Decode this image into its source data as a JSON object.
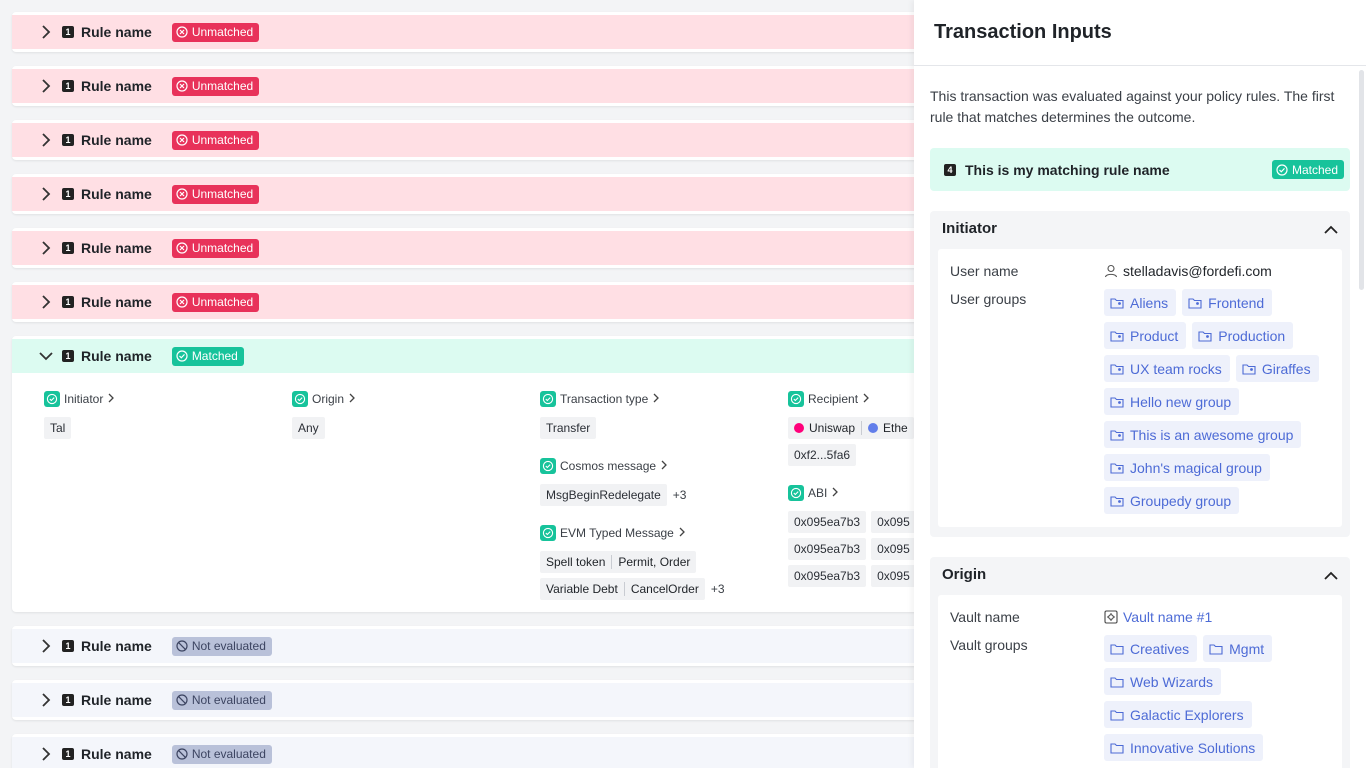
{
  "rules": {
    "unmatched": [
      {
        "num": "1",
        "name": "Rule name",
        "status": "Unmatched"
      },
      {
        "num": "1",
        "name": "Rule name",
        "status": "Unmatched"
      },
      {
        "num": "1",
        "name": "Rule name",
        "status": "Unmatched"
      },
      {
        "num": "1",
        "name": "Rule name",
        "status": "Unmatched"
      },
      {
        "num": "1",
        "name": "Rule name",
        "status": "Unmatched"
      },
      {
        "num": "1",
        "name": "Rule name",
        "status": "Unmatched"
      }
    ],
    "expanded": {
      "num": "1",
      "name": "Rule name",
      "status": "Matched",
      "initiator": {
        "label": "Initiator",
        "value": "Tal"
      },
      "origin": {
        "label": "Origin",
        "value": "Any"
      },
      "transaction_type": {
        "label": "Transaction type",
        "value": "Transfer"
      },
      "cosmos_message": {
        "label": "Cosmos message",
        "value": "MsgBeginRedelegate",
        "more": "+3"
      },
      "evm_typed_message": {
        "label": "EVM Typed Message",
        "row1": [
          "Spell token",
          "Permit, Order"
        ],
        "row2": [
          "Variable Debt",
          "CancelOrder"
        ],
        "more": "+3"
      },
      "recipient": {
        "label": "Recipient",
        "chip1": "Uniswap",
        "chip2": "Ethe",
        "address": "0xf2...5fa6"
      },
      "abi": {
        "label": "ABI",
        "values": [
          "0x095ea7b3",
          "0x095",
          "0x095ea7b3",
          "0x095",
          "0x095ea7b3",
          "0x095"
        ]
      }
    },
    "not_evaluated": [
      {
        "num": "1",
        "name": "Rule name",
        "status": "Not evaluated"
      },
      {
        "num": "1",
        "name": "Rule name",
        "status": "Not evaluated"
      },
      {
        "num": "1",
        "name": "Rule name",
        "status": "Not evaluated"
      }
    ]
  },
  "panel": {
    "title": "Transaction Inputs",
    "description": "This transaction was evaluated against your policy rules. The first rule that matches determines the outcome.",
    "matching_rule": {
      "num": "4",
      "name": "This is my matching rule name",
      "status": "Matched"
    },
    "initiator": {
      "title": "Initiator",
      "user_name_label": "User name",
      "user_name": "stelladavis@fordefi.com",
      "user_groups_label": "User groups",
      "user_groups": [
        "Aliens",
        "Frontend",
        "Product",
        "Production",
        "UX team rocks",
        "Giraffes",
        "Hello new group",
        "This is an awesome group",
        "John's magical group",
        "Groupedy group"
      ]
    },
    "origin": {
      "title": "Origin",
      "vault_name_label": "Vault name",
      "vault_name": "Vault name #1",
      "vault_groups_label": "Vault groups",
      "vault_groups": [
        "Creatives",
        "Mgmt",
        "Web Wizards",
        "Galactic Explorers",
        "Innovative Solutions"
      ]
    }
  },
  "colors": {
    "unmatched": "#e8325a",
    "matched": "#17c39b",
    "not_evaluated": "#b9c1d9",
    "link": "#4d6bd6"
  }
}
